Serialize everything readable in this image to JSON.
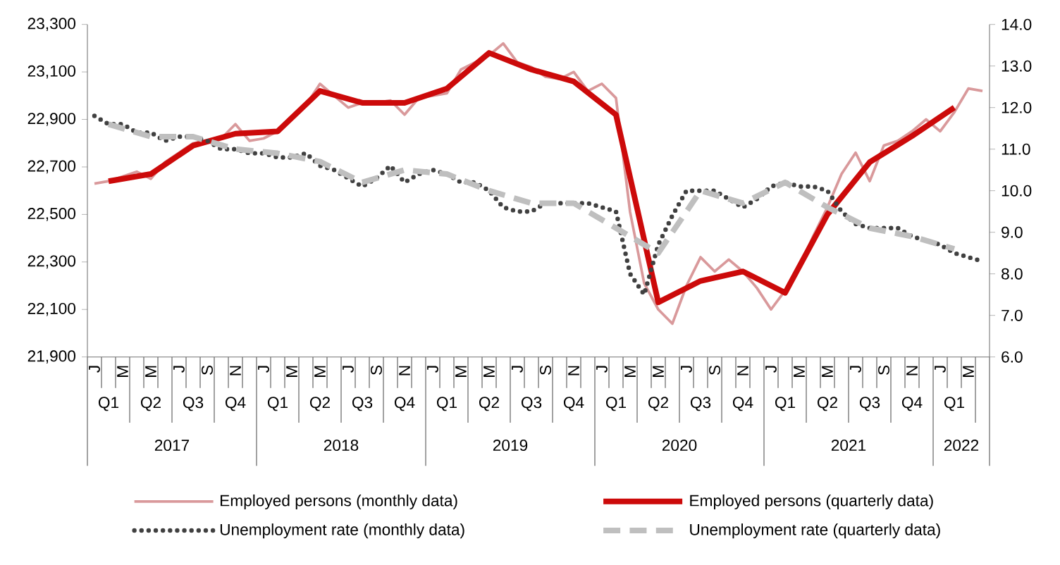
{
  "chart_data": {
    "type": "line",
    "categories": [
      "J",
      null,
      "M",
      null,
      "M",
      null,
      "J",
      null,
      "S",
      null,
      "N",
      null,
      "J",
      null,
      "M",
      null,
      "M",
      null,
      "J",
      null,
      "S",
      null,
      "N",
      null,
      "J",
      null,
      "M",
      null,
      "M",
      null,
      "J",
      null,
      "S",
      null,
      "N",
      null,
      "J",
      null,
      "M",
      null,
      "M",
      null,
      "J",
      null,
      "S",
      null,
      "N",
      null,
      "J",
      null,
      "M",
      null,
      "M",
      null,
      "J",
      null,
      "S",
      null,
      "N",
      null,
      "J",
      null,
      "M",
      null
    ],
    "ylim": [
      21900,
      23300
    ],
    "yticks": [
      {
        "value": 21900,
        "label": "21,900"
      },
      {
        "value": 22100,
        "label": "22,100"
      },
      {
        "value": 22300,
        "label": "22,300"
      },
      {
        "value": 22500,
        "label": "22,500"
      },
      {
        "value": 22700,
        "label": "22,700"
      },
      {
        "value": 22900,
        "label": "22,900"
      },
      {
        "value": 23100,
        "label": "23,100"
      },
      {
        "value": 23300,
        "label": "23,300"
      }
    ],
    "y2lim": [
      6,
      14
    ],
    "y2ticks": [
      {
        "value": 6,
        "label": "6.0"
      },
      {
        "value": 7,
        "label": "7.0"
      },
      {
        "value": 8,
        "label": "8.0"
      },
      {
        "value": 9,
        "label": "9.0"
      },
      {
        "value": 10,
        "label": "10.0"
      },
      {
        "value": 11,
        "label": "11.0"
      },
      {
        "value": 12,
        "label": "12.0"
      },
      {
        "value": 13,
        "label": "13.0"
      },
      {
        "value": 14,
        "label": "14.0"
      }
    ],
    "legend": "bottom",
    "annotations": [
      "Q1",
      "Q2",
      "Q3",
      "Q4",
      "Q1",
      "Q2",
      "Q3",
      "Q4",
      "Q1",
      "Q2",
      "Q3",
      "Q4",
      "Q1",
      "Q2",
      "Q3",
      "Q4",
      "Q1",
      "Q2",
      "Q3",
      "Q4",
      "Q1",
      "2017",
      "2018",
      "2019",
      "2020",
      "2021",
      "2022"
    ],
    "series": [
      {
        "name": "Employed persons (monthly data)",
        "color": "#d9999b",
        "line_style": "solid",
        "values": [
          22630,
          22640,
          22660,
          22680,
          22650,
          22720,
          22760,
          22800,
          22810,
          22820,
          22880,
          22810,
          22820,
          22850,
          22900,
          22960,
          23050,
          23000,
          22950,
          22970,
          22970,
          22980,
          22920,
          22990,
          23000,
          23010,
          23110,
          23140,
          23170,
          23220,
          23140,
          23120,
          23080,
          23070,
          23100,
          23020,
          23050,
          22990,
          22510,
          22210,
          22100,
          22040,
          22200,
          22320,
          22260,
          22310,
          22260,
          22190,
          22100,
          22180,
          22280,
          22410,
          22530,
          22670,
          22760,
          22640,
          22790,
          22810,
          22850,
          22900,
          22850,
          22930,
          23030,
          23020
        ]
      },
      {
        "name": "Employed persons (quarterly data)",
        "color": "#cc0a0a",
        "line_style": "solid",
        "values": [
          null,
          22640,
          null,
          null,
          22670,
          null,
          null,
          22790,
          null,
          null,
          22840,
          null,
          null,
          22850,
          null,
          null,
          23020,
          null,
          null,
          22970,
          null,
          null,
          22970,
          null,
          null,
          23030,
          null,
          null,
          23180,
          null,
          null,
          23110,
          null,
          null,
          23060,
          null,
          null,
          22920,
          null,
          null,
          22130,
          null,
          null,
          22220,
          null,
          null,
          22260,
          null,
          null,
          22170,
          null,
          null,
          22500,
          null,
          null,
          22720,
          null,
          null,
          22830,
          null,
          null,
          22950,
          null,
          null
        ]
      },
      {
        "name": "Unemployment rate (monthly data)",
        "color": "#404040",
        "line_style": "dotted",
        "axis": "y2",
        "values": [
          11.8,
          11.6,
          11.6,
          11.4,
          11.4,
          11.2,
          11.3,
          11.3,
          11.2,
          11.0,
          11.0,
          10.9,
          10.9,
          10.8,
          10.8,
          10.9,
          10.6,
          10.5,
          10.3,
          10.1,
          10.3,
          10.6,
          10.2,
          10.4,
          10.5,
          10.4,
          10.2,
          10.2,
          10.0,
          9.6,
          9.5,
          9.5,
          9.7,
          9.7,
          9.7,
          9.7,
          9.6,
          9.5,
          8.0,
          7.5,
          8.7,
          9.4,
          10.0,
          10.0,
          10.0,
          9.8,
          9.6,
          9.8,
          10.1,
          10.2,
          10.1,
          10.1,
          10.0,
          9.5,
          9.2,
          9.1,
          9.1,
          9.1,
          8.9,
          8.8,
          8.7,
          8.5,
          8.4,
          8.3
        ]
      },
      {
        "name": "Unemployment rate (quarterly data)",
        "color": "#bfbfbf",
        "line_style": "dashed",
        "axis": "y2",
        "values": [
          null,
          11.6,
          null,
          null,
          11.3,
          null,
          null,
          11.3,
          null,
          null,
          11.0,
          null,
          null,
          10.9,
          null,
          null,
          10.7,
          null,
          null,
          10.2,
          null,
          null,
          10.5,
          null,
          null,
          10.4,
          null,
          null,
          10.0,
          null,
          null,
          9.7,
          null,
          null,
          9.7,
          null,
          null,
          9.1,
          null,
          null,
          8.5,
          null,
          null,
          10.0,
          null,
          null,
          9.7,
          null,
          null,
          10.2,
          null,
          null,
          9.6,
          null,
          null,
          9.1,
          null,
          null,
          8.9,
          null,
          null,
          8.6,
          null,
          null
        ]
      }
    ]
  }
}
